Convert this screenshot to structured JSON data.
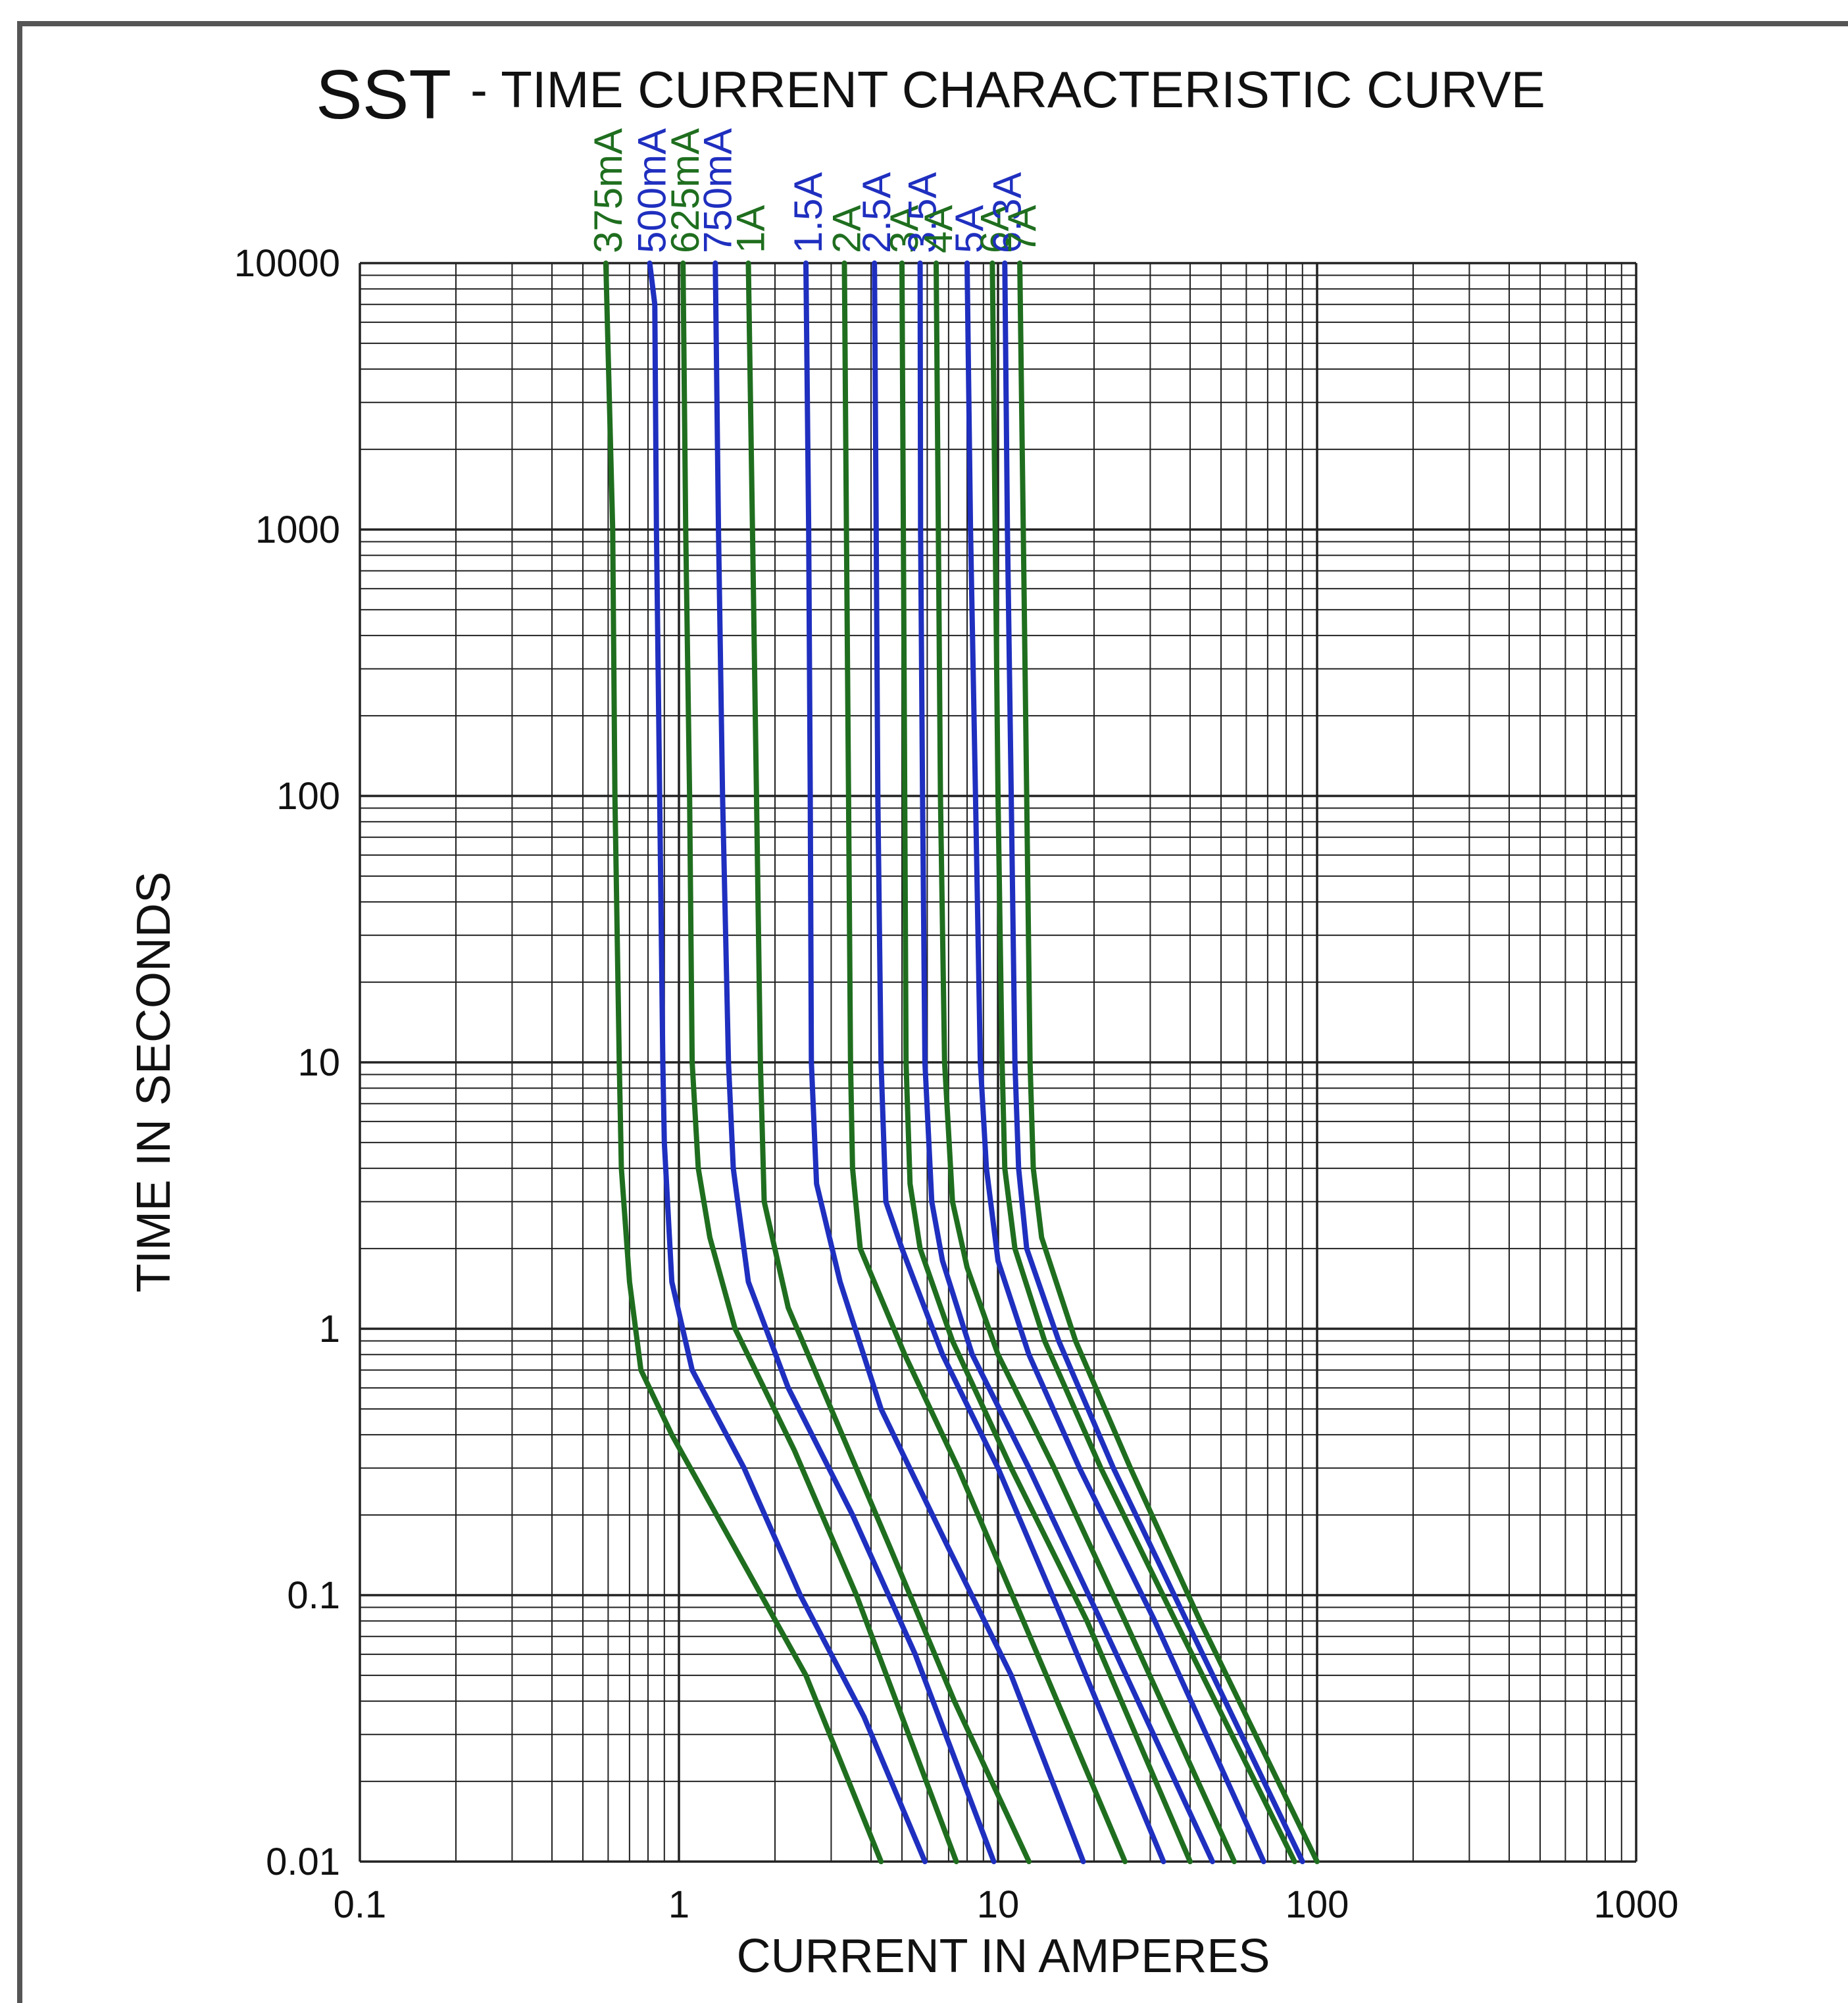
{
  "chart_data": {
    "type": "line",
    "title": "SST",
    "subtitle": "- TIME CURRENT CHARACTERISTIC CURVE",
    "xlabel": "CURRENT IN AMPERES",
    "ylabel": "TIME IN SECONDS",
    "xscale": "log",
    "yscale": "log",
    "xlim": [
      0.1,
      1000
    ],
    "ylim": [
      0.01,
      10000
    ],
    "xticks": [
      "0.1",
      "1",
      "10",
      "100",
      "1000"
    ],
    "yticks": [
      "0.01",
      "0.1",
      "1",
      "10",
      "100",
      "1000",
      "10000"
    ],
    "grid": true,
    "legend": "labels above plot",
    "colors": {
      "green": "#1f6e1f",
      "blue": "#1f2fbf"
    },
    "series": [
      {
        "name": "375mA",
        "color": "green",
        "points": [
          [
            0.59,
            10000
          ],
          [
            0.62,
            1000
          ],
          [
            0.63,
            100
          ],
          [
            0.65,
            10
          ],
          [
            0.66,
            4
          ],
          [
            0.7,
            1.5
          ],
          [
            0.76,
            0.7
          ],
          [
            0.95,
            0.4
          ],
          [
            1.5,
            0.15
          ],
          [
            2.5,
            0.05
          ],
          [
            4.3,
            0.01
          ]
        ]
      },
      {
        "name": "500mA",
        "color": "blue",
        "points": [
          [
            0.81,
            10000
          ],
          [
            0.84,
            7000
          ],
          [
            0.85,
            1000
          ],
          [
            0.87,
            100
          ],
          [
            0.89,
            10
          ],
          [
            0.9,
            5
          ],
          [
            0.95,
            1.5
          ],
          [
            1.1,
            0.7
          ],
          [
            1.6,
            0.3
          ],
          [
            2.4,
            0.1
          ],
          [
            3.8,
            0.035
          ],
          [
            5.9,
            0.01
          ]
        ]
      },
      {
        "name": "625mA",
        "color": "green",
        "points": [
          [
            1.03,
            10000
          ],
          [
            1.05,
            1000
          ],
          [
            1.08,
            100
          ],
          [
            1.1,
            10
          ],
          [
            1.15,
            4
          ],
          [
            1.25,
            2.2
          ],
          [
            1.5,
            1
          ],
          [
            2.3,
            0.35
          ],
          [
            3.6,
            0.1
          ],
          [
            5.0,
            0.035
          ],
          [
            7.4,
            0.01
          ]
        ]
      },
      {
        "name": "750mA",
        "color": "blue",
        "points": [
          [
            1.3,
            10000
          ],
          [
            1.33,
            1000
          ],
          [
            1.37,
            100
          ],
          [
            1.43,
            10
          ],
          [
            1.48,
            4
          ],
          [
            1.65,
            1.5
          ],
          [
            2.2,
            0.6
          ],
          [
            3.5,
            0.2
          ],
          [
            5.5,
            0.06
          ],
          [
            9.7,
            0.01
          ]
        ]
      },
      {
        "name": "1A",
        "color": "green",
        "points": [
          [
            1.65,
            10000
          ],
          [
            1.7,
            1000
          ],
          [
            1.75,
            100
          ],
          [
            1.8,
            10
          ],
          [
            1.85,
            3
          ],
          [
            2.2,
            1.2
          ],
          [
            3.0,
            0.5
          ],
          [
            4.6,
            0.15
          ],
          [
            7.3,
            0.04
          ],
          [
            12.5,
            0.01
          ]
        ]
      },
      {
        "name": "1.5A",
        "color": "blue",
        "points": [
          [
            2.5,
            10000
          ],
          [
            2.55,
            1000
          ],
          [
            2.58,
            100
          ],
          [
            2.6,
            10
          ],
          [
            2.7,
            3.5
          ],
          [
            3.2,
            1.5
          ],
          [
            4.3,
            0.5
          ],
          [
            7.0,
            0.15
          ],
          [
            11,
            0.05
          ],
          [
            18.5,
            0.01
          ]
        ]
      },
      {
        "name": "2A",
        "color": "green",
        "points": [
          [
            3.3,
            10000
          ],
          [
            3.35,
            1000
          ],
          [
            3.4,
            100
          ],
          [
            3.45,
            10
          ],
          [
            3.5,
            4
          ],
          [
            3.7,
            2
          ],
          [
            5.1,
            0.8
          ],
          [
            7.5,
            0.3
          ],
          [
            12,
            0.08
          ],
          [
            25,
            0.01
          ]
        ]
      },
      {
        "name": "2.5A",
        "color": "blue",
        "points": [
          [
            4.1,
            10000
          ],
          [
            4.15,
            1000
          ],
          [
            4.2,
            100
          ],
          [
            4.3,
            10
          ],
          [
            4.45,
            3
          ],
          [
            5.0,
            2
          ],
          [
            6.7,
            0.8
          ],
          [
            10,
            0.3
          ],
          [
            16,
            0.08
          ],
          [
            33,
            0.01
          ]
        ]
      },
      {
        "name": "3A",
        "color": "green",
        "points": [
          [
            5.0,
            10000
          ],
          [
            5.05,
            1000
          ],
          [
            5.1,
            100
          ],
          [
            5.15,
            10
          ],
          [
            5.3,
            3.5
          ],
          [
            5.7,
            2
          ],
          [
            7.2,
            0.9
          ],
          [
            11,
            0.3
          ],
          [
            19,
            0.08
          ],
          [
            40,
            0.01
          ]
        ]
      },
      {
        "name": "3.5A",
        "color": "blue",
        "points": [
          [
            5.7,
            10000
          ],
          [
            5.72,
            1000
          ],
          [
            5.8,
            100
          ],
          [
            5.9,
            10
          ],
          [
            6.2,
            3
          ],
          [
            6.7,
            1.8
          ],
          [
            8.3,
            0.8
          ],
          [
            12.5,
            0.3
          ],
          [
            21,
            0.08
          ],
          [
            47,
            0.01
          ]
        ]
      },
      {
        "name": "4A",
        "color": "green",
        "points": [
          [
            6.4,
            10000
          ],
          [
            6.5,
            1000
          ],
          [
            6.6,
            100
          ],
          [
            6.8,
            10
          ],
          [
            7.2,
            3
          ],
          [
            8.0,
            1.7
          ],
          [
            10,
            0.8
          ],
          [
            15,
            0.3
          ],
          [
            25,
            0.08
          ],
          [
            55,
            0.01
          ]
        ]
      },
      {
        "name": "5A",
        "color": "blue",
        "points": [
          [
            8.0,
            10000
          ],
          [
            8.2,
            1000
          ],
          [
            8.5,
            100
          ],
          [
            8.8,
            10
          ],
          [
            9.2,
            4
          ],
          [
            10,
            1.8
          ],
          [
            12.5,
            0.8
          ],
          [
            18,
            0.3
          ],
          [
            31,
            0.08
          ],
          [
            68,
            0.01
          ]
        ]
      },
      {
        "name": "6A",
        "color": "green",
        "points": [
          [
            9.6,
            10000
          ],
          [
            9.8,
            1000
          ],
          [
            10,
            100
          ],
          [
            10.3,
            10
          ],
          [
            10.5,
            4
          ],
          [
            11.3,
            2
          ],
          [
            14,
            0.9
          ],
          [
            21,
            0.3
          ],
          [
            36,
            0.08
          ],
          [
            85,
            0.01
          ]
        ]
      },
      {
        "name": "6.3A",
        "color": "blue",
        "points": [
          [
            10.5,
            10000
          ],
          [
            10.7,
            1000
          ],
          [
            11,
            100
          ],
          [
            11.3,
            10
          ],
          [
            11.6,
            4
          ],
          [
            12.3,
            2
          ],
          [
            15.5,
            0.9
          ],
          [
            23,
            0.3
          ],
          [
            39,
            0.08
          ],
          [
            90,
            0.01
          ]
        ]
      },
      {
        "name": "7A",
        "color": "green",
        "points": [
          [
            11.7,
            10000
          ],
          [
            12,
            1000
          ],
          [
            12.3,
            100
          ],
          [
            12.6,
            10
          ],
          [
            12.9,
            4
          ],
          [
            13.7,
            2.2
          ],
          [
            17.5,
            0.9
          ],
          [
            26,
            0.3
          ],
          [
            43,
            0.08
          ],
          [
            100,
            0.01
          ]
        ]
      }
    ]
  }
}
